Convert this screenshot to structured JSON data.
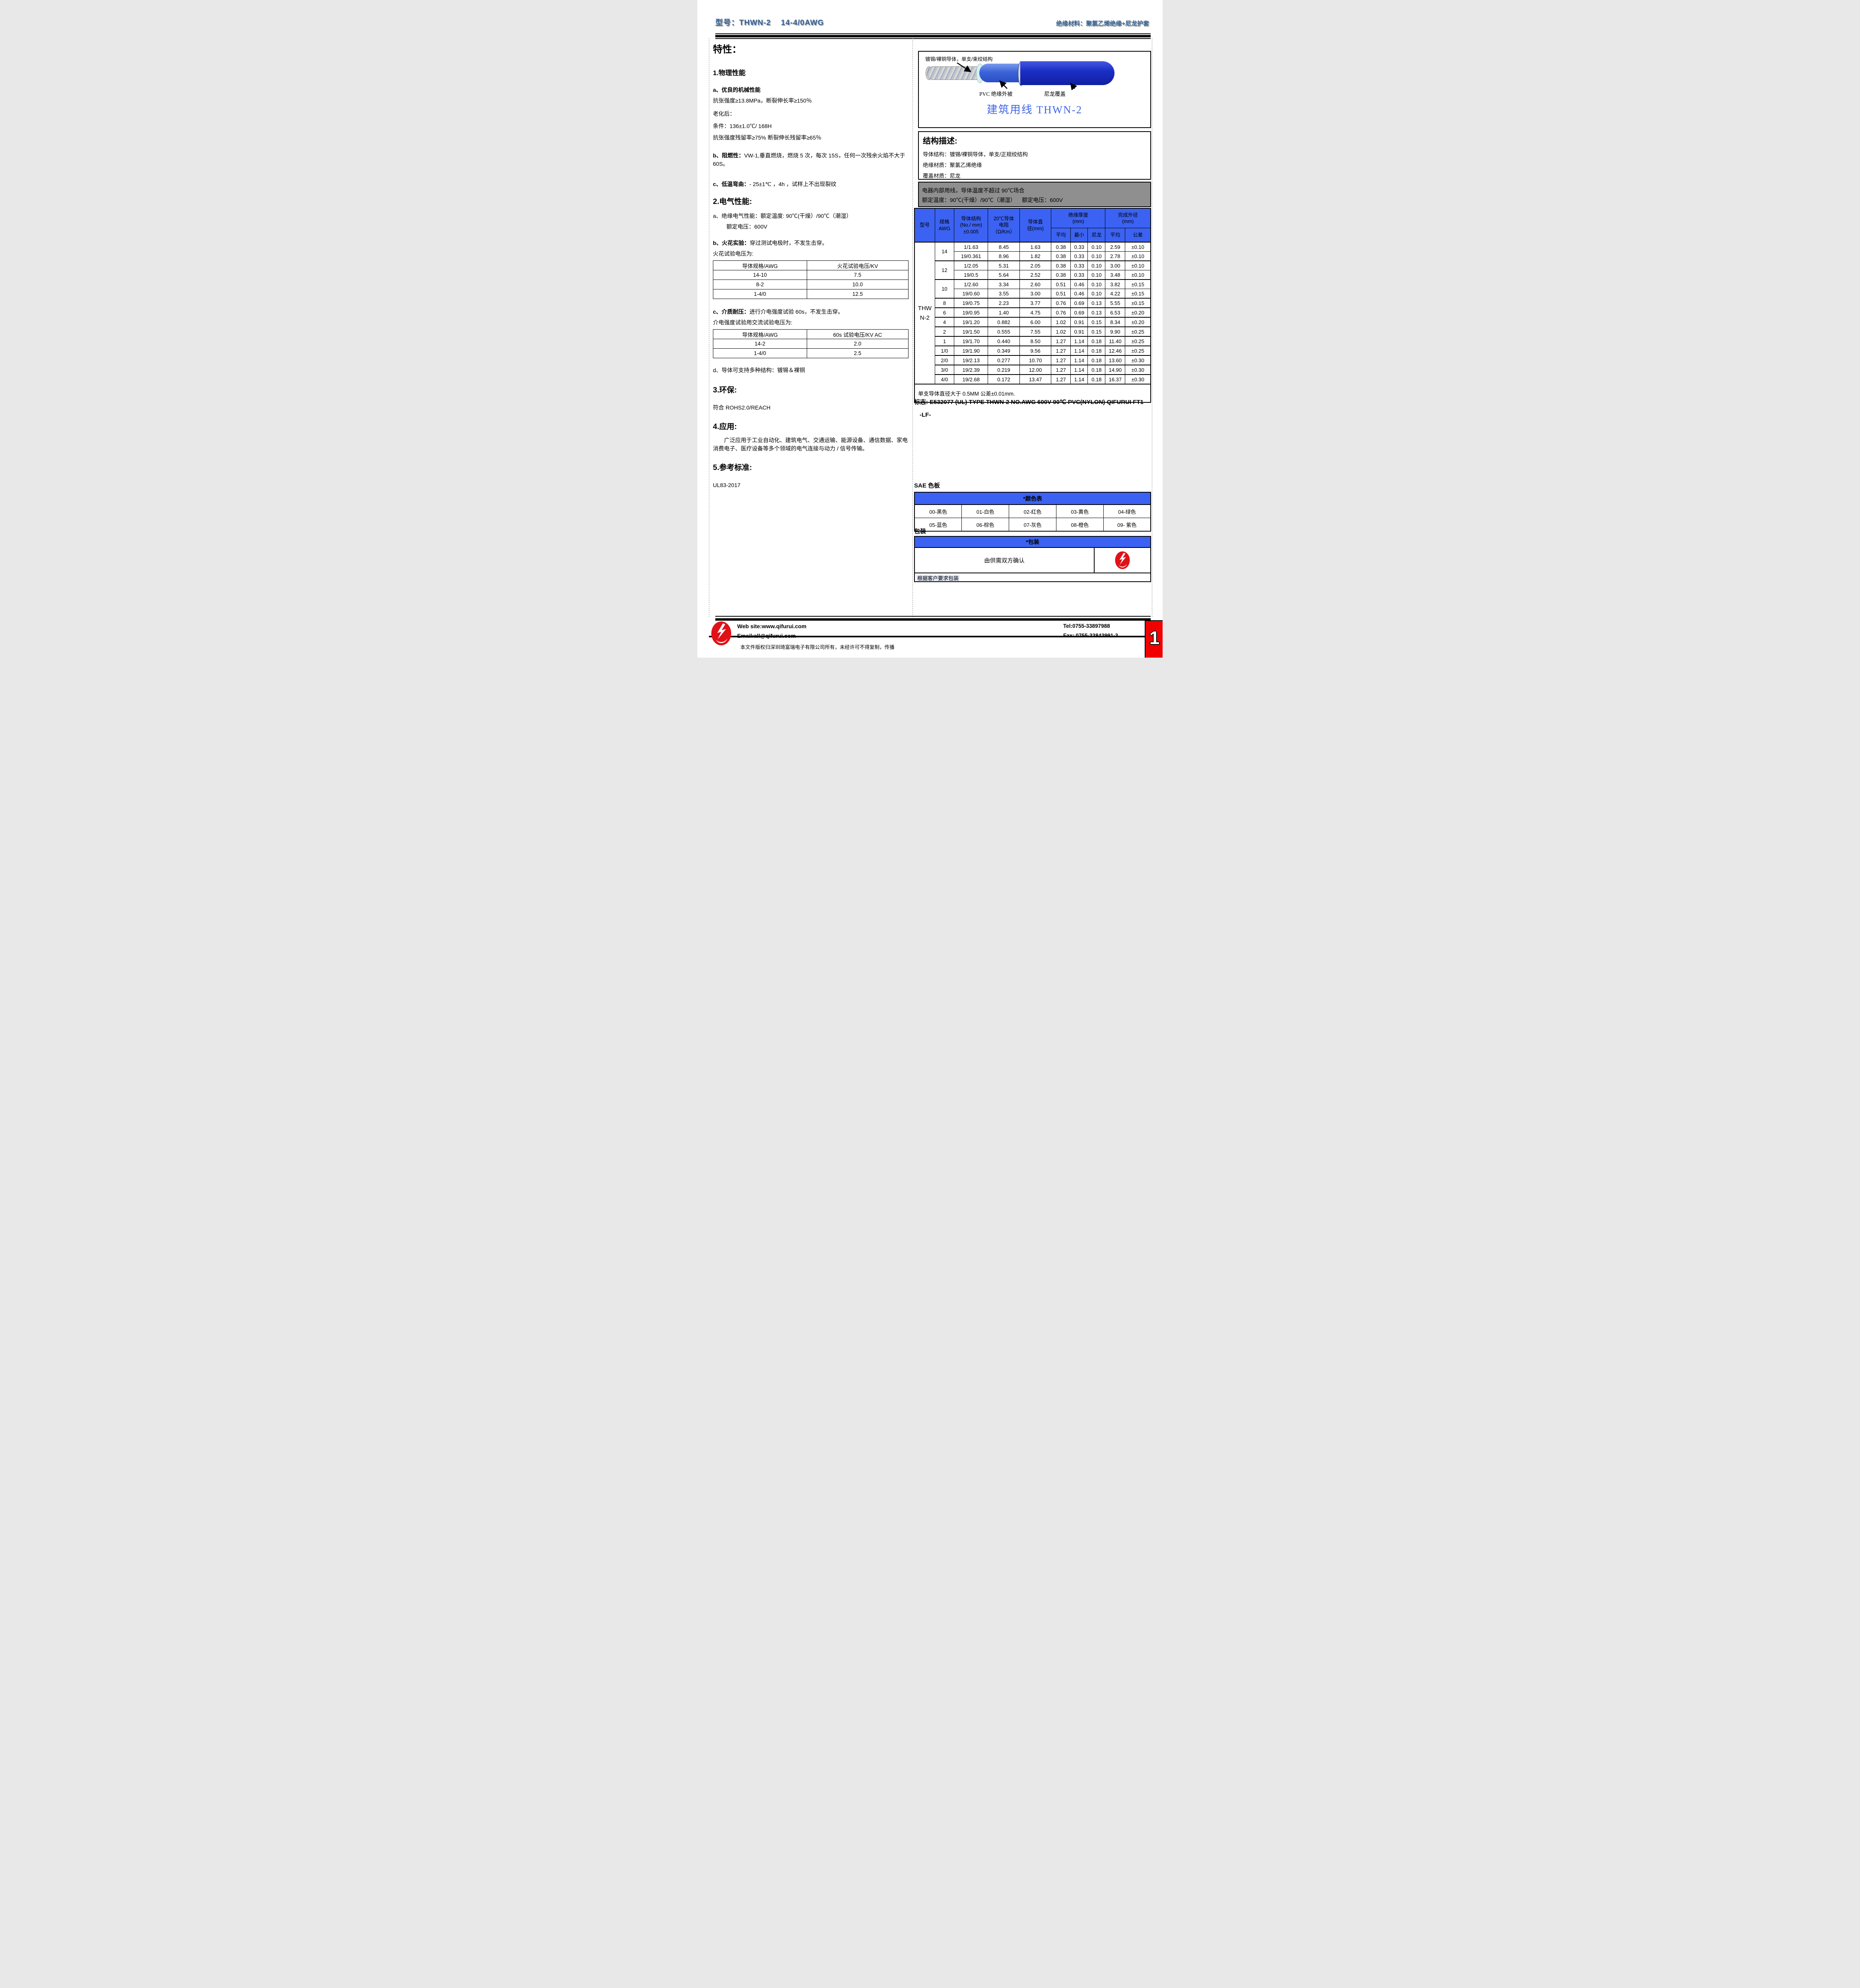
{
  "header": {
    "model_label": "型号：THWN-2    14-4/0AWG",
    "material_label": "绝缘材料：聚氯乙烯绝缘+尼龙护套"
  },
  "left": {
    "features_title": "特性：",
    "phys": {
      "title": "1.物理性能",
      "a_title": "a、优良的机械性能",
      "tensile": "抗张强度≥13.8MPa，断裂伸长率≥150％",
      "aging": "老化后：",
      "condition": "条件：136±1.0℃/ 168H",
      "retention": "抗张强度残留率≥75%  断裂伸长残留率≥65％",
      "b_label": "b、阻燃性：",
      "b_text": "VW-1,垂直燃烧，燃烧 5 次，每次 15S，任何一次残余火焰不大于 60S。",
      "c_label": "c、低温弯曲：",
      "c_text": "- 25±1℃ ，4h ，试样上不出现裂纹"
    },
    "elec": {
      "title": "2.电气性能:",
      "a_text": "a、绝缘电气性能：额定温度: 90℃(干燥）/90℃（潮湿）",
      "a_text2": "额定电压：600V",
      "b_label": "b、火花实验：",
      "b_text": "穿过测试电极时，不发生击穿。",
      "b_text2": "火花试验电压为:",
      "spark_table": {
        "headers": [
          "导体规格/AWG",
          "火花试验电压/KV"
        ],
        "rows": [
          [
            "14-10",
            "7.5"
          ],
          [
            "8-2",
            "10.0"
          ],
          [
            "1-4/0",
            "12.5"
          ]
        ]
      },
      "c_label": "c、介质耐压：",
      "c_text": "进行介电强度试验 60s，不发生击穿。",
      "c_text2": "介电强度试验用交流试验电压为:",
      "dielectric_table": {
        "headers": [
          "导体规格/AWG",
          "60s 试验电压/KV AC"
        ],
        "rows": [
          [
            "14-2",
            "2.0"
          ],
          [
            "1-4/0",
            "2.5"
          ]
        ]
      },
      "d_text": "d、导体可支持多种结构：镀锡＆裸铜"
    },
    "env": {
      "title": "3.环保:",
      "text": "符合 ROHS2.0/REACH"
    },
    "app": {
      "title": "4.应用:",
      "text": "广泛应用于工业自动化、建筑电气、交通运输、能源设备、通信数据、家电消费电子、医疗设备等多个领域的电气连接与动力 / 信号传输。"
    },
    "std": {
      "title": "5.参考标准:",
      "text": "UL83-2017"
    }
  },
  "right": {
    "wire": {
      "callout": "镀锡/裸铜导体，单支/束绞结构",
      "pvc_label": "PVC 绝缘外被",
      "nylon_label": "尼龙覆盖",
      "product": "建筑用线  THWN-2"
    },
    "structure": {
      "title": "结构描述:",
      "conductor": "导体结构：镀锡/裸铜导体，单支/正规绞结构",
      "insulation": "绝缘材质：聚氯乙烯绝缘",
      "cover": "覆盖材质：尼龙"
    },
    "usage": {
      "line1": "电器内部用线，导体温度不超过 90℃场合",
      "line2": "额定温度：90℃(干燥）/90℃（潮湿）    额定电压：600V"
    },
    "spec_table": {
      "headers": {
        "model": "型号",
        "awg": "规格\nAWG",
        "structure": "导体结构\n(No./ mm)\n±0.005",
        "resistance": "20℃导体\n电阻\n（Ω/Km）",
        "diameter": "导体直\n径(mm)",
        "insul_thickness": "绝缘厚度\n(mm)",
        "finished_od": "完成外径\n(mm)",
        "avg": "平均",
        "min": "最小",
        "nylon": "尼龙",
        "avg2": "平均",
        "tol": "公差"
      },
      "model": "THW\nN-2",
      "rows": [
        {
          "awg": "14",
          "span": 2,
          "cells": [
            "1/1.63",
            "8.45",
            "1.63",
            "0.38",
            "0.33",
            "0.10",
            "2.59",
            "±0.10"
          ]
        },
        {
          "cells": [
            "19/0.361",
            "8.96",
            "1.82",
            "0.38",
            "0.33",
            "0.10",
            "2.78",
            "±0.10"
          ]
        },
        {
          "awg": "12",
          "span": 2,
          "cells": [
            "1/2.05",
            "5.31",
            "2.05",
            "0.38",
            "0.33",
            "0.10",
            "3.00",
            "±0.10"
          ]
        },
        {
          "cells": [
            "19/0.5",
            "5.64",
            "2.52",
            "0.38",
            "0.33",
            "0.10",
            "3.48",
            "±0.10"
          ]
        },
        {
          "awg": "10",
          "span": 2,
          "cells": [
            "1/2.60",
            "3.34",
            "2.60",
            "0.51",
            "0.46",
            "0.10",
            "3.82",
            "±0.15"
          ]
        },
        {
          "cells": [
            "19/0.60",
            "3.55",
            "3.00",
            "0.51",
            "0.46",
            "0.10",
            "4.22",
            "±0.15"
          ]
        },
        {
          "awg": "8",
          "span": 1,
          "cells": [
            "19/0.75",
            "2.23",
            "3.77",
            "0.76",
            "0.69",
            "0.13",
            "5.55",
            "±0.15"
          ]
        },
        {
          "awg": "6",
          "span": 1,
          "cells": [
            "19/0.95",
            "1.40",
            "4.75",
            "0.76",
            "0.69",
            "0.13",
            "6.53",
            "±0.20"
          ]
        },
        {
          "awg": "4",
          "span": 1,
          "cells": [
            "19/1.20",
            "0.882",
            "6.00",
            "1.02",
            "0.91",
            "0.15",
            "8.34",
            "±0.20"
          ]
        },
        {
          "awg": "2",
          "span": 1,
          "cells": [
            "19/1.50",
            "0.555",
            "7.55",
            "1.02",
            "0.91",
            "0.15",
            "9.90",
            "±0.25"
          ]
        },
        {
          "awg": "1",
          "span": 1,
          "cells": [
            "19/1.70",
            "0.440",
            "8.50",
            "1.27",
            "1.14",
            "0.18",
            "11.40",
            "±0.25"
          ]
        },
        {
          "awg": "1/0",
          "span": 1,
          "cells": [
            "19/1.90",
            "0.349",
            "9.56",
            "1.27",
            "1.14",
            "0.18",
            "12.46",
            "±0.25"
          ]
        },
        {
          "awg": "2/0",
          "span": 1,
          "cells": [
            "19/2.13",
            "0.277",
            "10.70",
            "1.27",
            "1.14",
            "0.18",
            "13.60",
            "±0.30"
          ]
        },
        {
          "awg": "3/0",
          "span": 1,
          "cells": [
            "19/2.39",
            "0.219",
            "12.00",
            "1.27",
            "1.14",
            "0.18",
            "14.90",
            "±0.30"
          ]
        },
        {
          "awg": "4/0",
          "span": 1,
          "cells": [
            "19/2.68",
            "0.172",
            "13.47",
            "1.27",
            "1.14",
            "0.18",
            "16.37",
            "±0.30"
          ]
        }
      ],
      "note": "单支导体直径大于 0.5MM 公差±0.01mm."
    },
    "marking": {
      "label": "标志:",
      "text": "E532077 (UL) TYPE THWN-2 NO.AWG 600V 90℃  PVC(NYLON) QIFURUI FT1",
      "text2": "-LF-"
    },
    "sae_title": "SAE 色板",
    "color_table": {
      "header": "*颜色表",
      "rows": [
        [
          "00-黑色",
          "01-白色",
          "02-红色",
          "03-黄色",
          "04-绿色"
        ],
        [
          "05-蓝色",
          "06-棕色",
          "07-灰色",
          "08-橙色",
          "09- 紫色"
        ]
      ]
    },
    "packing_title": "包装",
    "packing_table": {
      "header": "*包装",
      "confirm": "由供需双方确认",
      "bottom": "根据客户要求包装"
    }
  },
  "footer": {
    "website": "Web site:www.qifurui.com",
    "email": "Email:all@qifurui.com",
    "tel": "Tel:0755-33897988",
    "fax": "Fax: 0755-33843991-3",
    "copyright": "本文件版权归深圳琦富瑞电子有限公司所有，未经许可不得复制，传播",
    "page": "1"
  },
  "colors": {
    "table_header_blue": "#3B62F2",
    "product_blue": "#4168E8",
    "header_title_blue": "#366092",
    "gray_panel": "#8F8F8F",
    "pvc_blue": "#3C63D8",
    "nylon_blue": "#1C2FC6",
    "logo_red": "#E01217",
    "page_tab_red": "#F20000"
  }
}
